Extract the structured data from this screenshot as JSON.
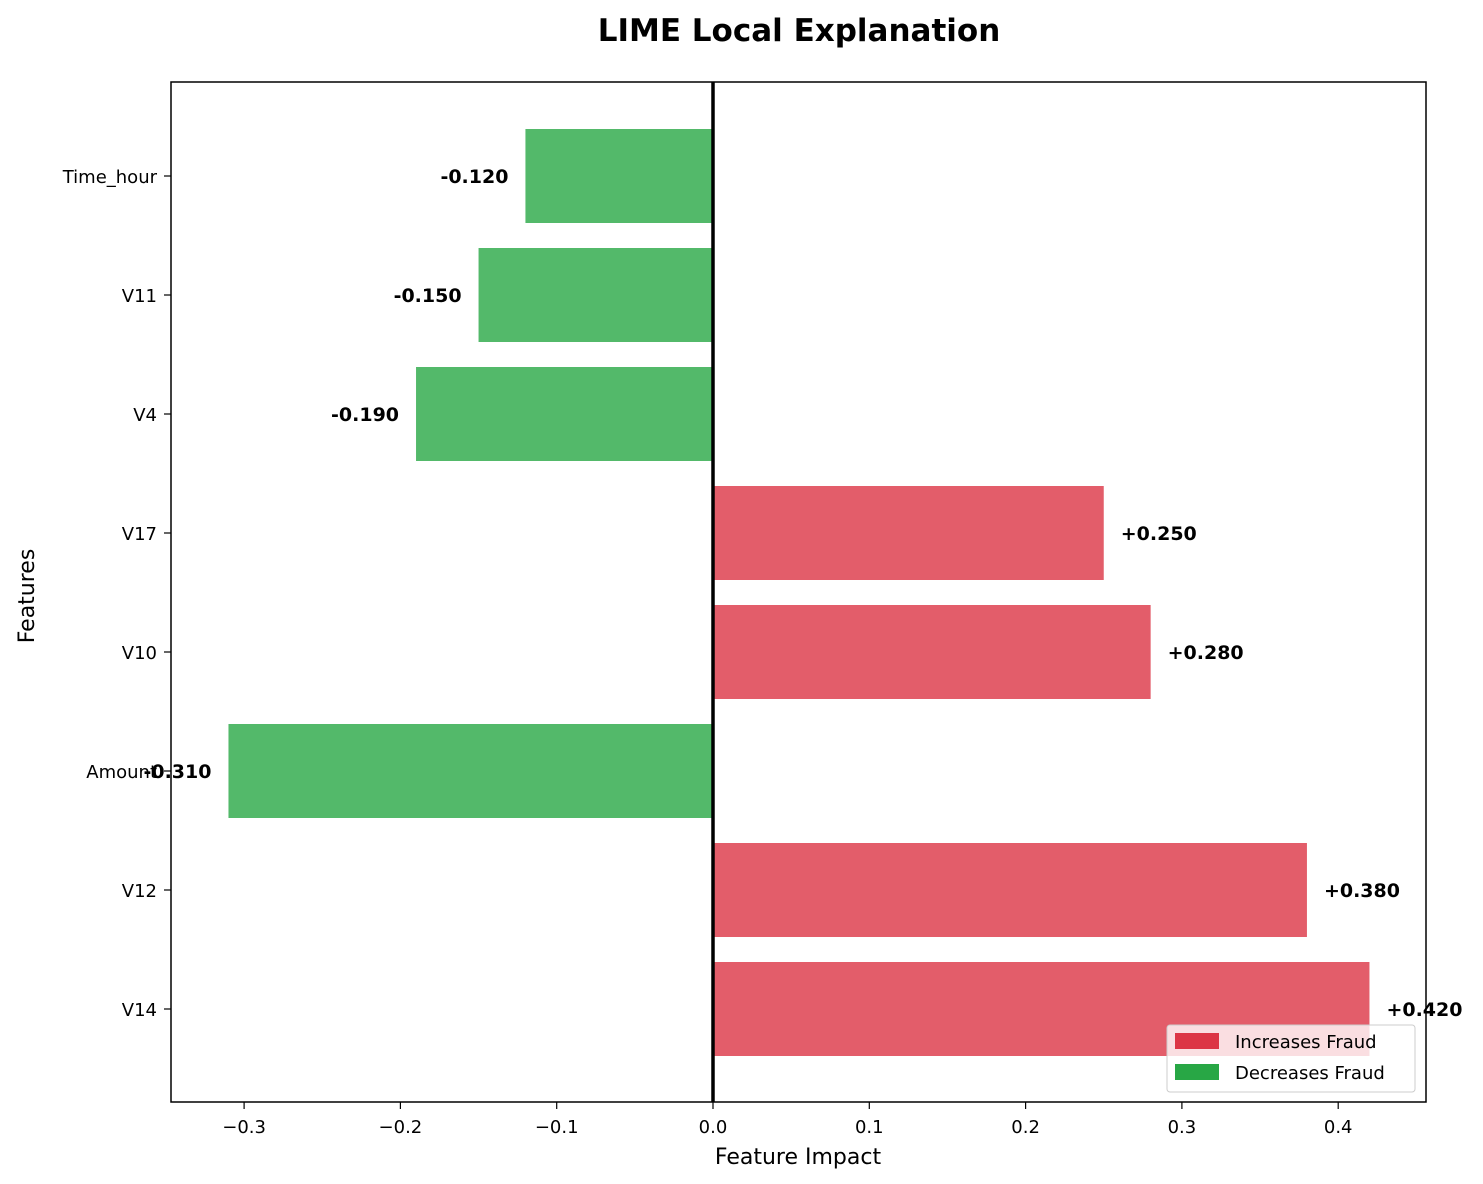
{
  "chart_data": {
    "type": "bar",
    "orientation": "horizontal",
    "title": "LIME Local Explanation",
    "xlabel": "Feature Impact",
    "ylabel": "Features",
    "xlim": [
      -0.345,
      0.455
    ],
    "xticks": [
      -0.3,
      -0.2,
      -0.1,
      0.0,
      0.1,
      0.2,
      0.3,
      0.4
    ],
    "xtick_labels": [
      "−0.3",
      "−0.2",
      "−0.1",
      "0.0",
      "0.1",
      "0.2",
      "0.3",
      "0.4"
    ],
    "categories": [
      "Time_hour",
      "V11",
      "V4",
      "V17",
      "V10",
      "Amount",
      "V12",
      "V14"
    ],
    "values": [
      -0.12,
      -0.15,
      -0.19,
      0.25,
      0.28,
      -0.31,
      0.38,
      0.42
    ],
    "value_labels": [
      "-0.120",
      "-0.150",
      "-0.190",
      "+0.250",
      "+0.280",
      "-0.310",
      "+0.380",
      "+0.420"
    ],
    "colors": {
      "increase": "#dc3545",
      "decrease": "#28a745",
      "zero_line": "#000000"
    },
    "legend": {
      "position": "lower-right",
      "items": [
        {
          "label": "Increases Fraud",
          "color": "#dc3545"
        },
        {
          "label": "Decreases Fraud",
          "color": "#28a745"
        }
      ]
    },
    "grid": false
  }
}
